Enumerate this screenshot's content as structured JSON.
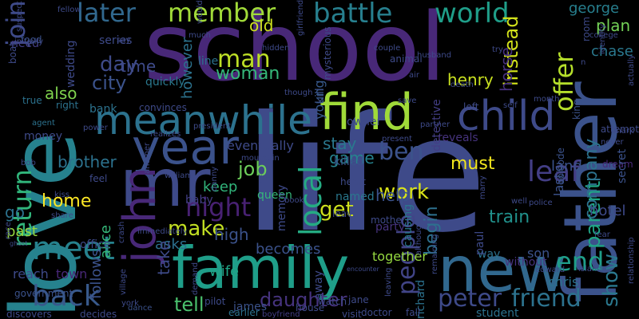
{
  "words": [
    {
      "text": "school",
      "color": "#482878"
    },
    {
      "text": "life",
      "color": "#3e4a89"
    },
    {
      "text": "love",
      "color": "#26828e"
    },
    {
      "text": "father",
      "color": "#3b528b"
    },
    {
      "text": "family",
      "color": "#1f9e89"
    },
    {
      "text": "new",
      "color": "#31688e"
    },
    {
      "text": "find",
      "color": "#a0da39"
    },
    {
      "text": "child",
      "color": "#3e4a89"
    },
    {
      "text": "year",
      "color": "#3b528b"
    },
    {
      "text": "mr",
      "color": "#3e4a89"
    },
    {
      "text": "meanwhile",
      "color": "#2c728e"
    },
    {
      "text": "john",
      "color": "#482878"
    },
    {
      "text": "meet",
      "color": "#26828e"
    },
    {
      "text": "battle",
      "color": "#277f8e"
    },
    {
      "text": "world",
      "color": "#1f9e89"
    },
    {
      "text": "member",
      "color": "#a0da39"
    },
    {
      "text": "later",
      "color": "#31688e"
    },
    {
      "text": "join",
      "color": "#3e4a89"
    },
    {
      "text": "return",
      "color": "#31b57b"
    },
    {
      "text": "back",
      "color": "#38598c"
    },
    {
      "text": "peter",
      "color": "#3e4a89"
    },
    {
      "text": "friend",
      "color": "#2c728e"
    },
    {
      "text": "end",
      "color": "#1f9e89"
    },
    {
      "text": "offer",
      "color": "#b5de2b"
    },
    {
      "text": "ben",
      "color": "#3b528b"
    },
    {
      "text": "local",
      "color": "#25ab82"
    },
    {
      "text": "leaf",
      "color": "#433e85"
    },
    {
      "text": "night",
      "color": "#482173"
    },
    {
      "text": "work",
      "color": "#d8e219"
    },
    {
      "text": "get",
      "color": "#cde11d"
    },
    {
      "text": "job",
      "color": "#6ccd5a"
    },
    {
      "text": "make",
      "color": "#c2df23"
    },
    {
      "text": "tell",
      "color": "#4ac16d"
    },
    {
      "text": "daughter",
      "color": "#46337e"
    },
    {
      "text": "people",
      "color": "#414487"
    },
    {
      "text": "show",
      "color": "#2a788e"
    },
    {
      "text": "parent",
      "color": "#20a486"
    },
    {
      "text": "company",
      "color": "#2c728e"
    },
    {
      "text": "home",
      "color": "#fde725"
    },
    {
      "text": "city",
      "color": "#3b528b"
    },
    {
      "text": "man",
      "color": "#bddf26"
    },
    {
      "text": "woman",
      "color": "#35b779"
    },
    {
      "text": "day",
      "color": "#3e4a89"
    },
    {
      "text": "time",
      "color": "#3e4a89"
    },
    {
      "text": "also",
      "color": "#7fd34e"
    },
    {
      "text": "brother",
      "color": "#2c728e"
    },
    {
      "text": "go",
      "color": "#2c728e"
    },
    {
      "text": "past",
      "color": "#95d840"
    },
    {
      "text": "hotel",
      "color": "#3e4a89"
    },
    {
      "text": "train",
      "color": "#21918c"
    },
    {
      "text": "instead",
      "color": "#d2e21b"
    },
    {
      "text": "plan",
      "color": "#73d056"
    },
    {
      "text": "george",
      "color": "#277f8e"
    },
    {
      "text": "chase",
      "color": "#2a788e"
    },
    {
      "text": "horse",
      "color": "#46307e"
    },
    {
      "text": "henry",
      "color": "#c8e020"
    },
    {
      "text": "land",
      "color": "#3b528b"
    },
    {
      "text": "must",
      "color": "#f1e51d"
    },
    {
      "text": "begin",
      "color": "#2d708e"
    },
    {
      "text": "help",
      "color": "#3b528b"
    },
    {
      "text": "stay",
      "color": "#2a788e"
    },
    {
      "text": "game",
      "color": "#26828e"
    },
    {
      "text": "keep",
      "color": "#31b57b"
    },
    {
      "text": "high",
      "color": "#3b528b"
    },
    {
      "text": "asks",
      "color": "#2d708e"
    },
    {
      "text": "take",
      "color": "#3e4a89"
    },
    {
      "text": "wife",
      "color": "#20a486"
    },
    {
      "text": "becomes",
      "color": "#3b528b"
    },
    {
      "text": "alice",
      "color": "#35b779"
    },
    {
      "text": "follows",
      "color": "#3b528b"
    },
    {
      "text": "town",
      "color": "#482878"
    },
    {
      "text": "reach",
      "color": "#3e4a89"
    },
    {
      "text": "office",
      "color": "#3e4a89"
    },
    {
      "text": "old",
      "color": "#cde11d"
    },
    {
      "text": "however",
      "color": "#2c728e"
    },
    {
      "text": "young",
      "color": "#38598c"
    },
    {
      "text": "eventually",
      "color": "#3e4a89"
    },
    {
      "text": "dream",
      "color": "#482878"
    },
    {
      "text": "last",
      "color": "#3b528b"
    },
    {
      "text": "secret",
      "color": "#3b528b"
    },
    {
      "text": "son",
      "color": "#3b528b"
    },
    {
      "text": "chris",
      "color": "#2c728e"
    },
    {
      "text": "way",
      "color": "#2c728e"
    },
    {
      "text": "together",
      "color": "#95d840"
    },
    {
      "text": "without",
      "color": "#46337e"
    },
    {
      "text": "party",
      "color": "#46337e"
    },
    {
      "text": "causing",
      "color": "#2a788e"
    },
    {
      "text": "detective",
      "color": "#433e85"
    },
    {
      "text": "reveals",
      "color": "#46337e"
    },
    {
      "text": "killed",
      "color": "#3b528b"
    },
    {
      "text": "named",
      "color": "#2a788e"
    },
    {
      "text": "queen",
      "color": "#35b779"
    },
    {
      "text": "james",
      "color": "#3b528b"
    },
    {
      "text": "baby",
      "color": "#433e85"
    },
    {
      "text": "richard",
      "color": "#2c728e"
    },
    {
      "text": "paul",
      "color": "#3e4a89"
    },
    {
      "text": "king",
      "color": "#3b528b"
    },
    {
      "text": "episode",
      "color": "#3b528b"
    },
    {
      "text": "kill",
      "color": "#3b528b"
    },
    {
      "text": "away",
      "color": "#3e4a89"
    },
    {
      "text": "student",
      "color": "#2c728e"
    },
    {
      "text": "memory",
      "color": "#3e4a89"
    },
    {
      "text": "line",
      "color": "#2c728e"
    },
    {
      "text": "quickly",
      "color": "#2a788e"
    },
    {
      "text": "bank",
      "color": "#2c728e"
    },
    {
      "text": "money",
      "color": "#3e4a89"
    },
    {
      "text": "convinces",
      "color": "#3e4a89"
    },
    {
      "text": "series",
      "color": "#3e4a89"
    },
    {
      "text": "need",
      "color": "#433e85"
    },
    {
      "text": "boat",
      "color": "#3e4a89"
    },
    {
      "text": "food",
      "color": "#3b528b"
    },
    {
      "text": "wedding",
      "color": "#3e4a89"
    },
    {
      "text": "true",
      "color": "#2c728e"
    },
    {
      "text": "agent",
      "color": "#2c728e"
    },
    {
      "text": "right",
      "color": "#2c728e"
    },
    {
      "text": "government",
      "color": "#3b528b"
    },
    {
      "text": "discovers",
      "color": "#3e4a89"
    },
    {
      "text": "decides",
      "color": "#3e4a89"
    },
    {
      "text": "dance",
      "color": "#3b528b"
    },
    {
      "text": "earlier",
      "color": "#2c728e"
    },
    {
      "text": "pilot",
      "color": "#3e4a89"
    },
    {
      "text": "boyfriend",
      "color": "#433e85"
    },
    {
      "text": "doctor",
      "color": "#3e4a89"
    },
    {
      "text": "fall",
      "color": "#3e4a89"
    },
    {
      "text": "jane",
      "color": "#3e4a89"
    },
    {
      "text": "visit",
      "color": "#3e4a89"
    },
    {
      "text": "watch",
      "color": "#3e4a89"
    },
    {
      "text": "house",
      "color": "#3e4a89"
    },
    {
      "text": "mother",
      "color": "#3e4a89"
    },
    {
      "text": "leave",
      "color": "#3e4a89"
    },
    {
      "text": "heart",
      "color": "#3e4a89"
    },
    {
      "text": "girlfriend",
      "color": "#3e4a89"
    },
    {
      "text": "husband",
      "color": "#3e4a89"
    },
    {
      "text": "couple",
      "color": "#3e4a89"
    },
    {
      "text": "mysterious",
      "color": "#3e4a89"
    },
    {
      "text": "room",
      "color": "#3e4a89"
    },
    {
      "text": "identity",
      "color": "#3e4a89"
    },
    {
      "text": "college",
      "color": "#3e4a89"
    },
    {
      "text": "attempt",
      "color": "#3e4a89"
    },
    {
      "text": "relationship",
      "color": "#3e4a89"
    },
    {
      "text": "edward",
      "color": "#3e4a89"
    },
    {
      "text": "police",
      "color": "#3e4a89"
    },
    {
      "text": "mark",
      "color": "#3e4a89"
    },
    {
      "text": "never",
      "color": "#3e4a89"
    },
    {
      "text": "marry",
      "color": "#3e4a89"
    },
    {
      "text": "william",
      "color": "#3e4a89"
    },
    {
      "text": "president",
      "color": "#3e4a89"
    },
    {
      "text": "realizes",
      "color": "#3e4a89"
    },
    {
      "text": "bob",
      "color": "#3e4a89"
    },
    {
      "text": "power",
      "color": "#3e4a89"
    },
    {
      "text": "kiss",
      "color": "#3e4a89"
    },
    {
      "text": "share",
      "color": "#3e4a89"
    },
    {
      "text": "race",
      "color": "#3e4a89"
    },
    {
      "text": "ghost",
      "color": "#3e4a89"
    },
    {
      "text": "immediately",
      "color": "#3e4a89"
    },
    {
      "text": "crash",
      "color": "#3e4a89"
    },
    {
      "text": "village",
      "color": "#3e4a89"
    },
    {
      "text": "demand",
      "color": "#3e4a89"
    },
    {
      "text": "encounter",
      "color": "#3e4a89"
    },
    {
      "text": "leaving",
      "color": "#3e4a89"
    },
    {
      "text": "remaining",
      "color": "#3e4a89"
    },
    {
      "text": "although",
      "color": "#3e4a89"
    },
    {
      "text": "present",
      "color": "#3e4a89"
    },
    {
      "text": "partner",
      "color": "#3e4a89"
    },
    {
      "text": "left",
      "color": "#3e4a89"
    },
    {
      "text": "self",
      "color": "#3e4a89"
    },
    {
      "text": "though",
      "color": "#3e4a89"
    },
    {
      "text": "save",
      "color": "#3e4a89"
    },
    {
      "text": "death",
      "color": "#3e4a89"
    },
    {
      "text": "air",
      "color": "#3e4a89"
    },
    {
      "text": "animal",
      "color": "#3e4a89"
    },
    {
      "text": "hidden",
      "color": "#3e4a89"
    },
    {
      "text": "would",
      "color": "#3e4a89"
    },
    {
      "text": "say",
      "color": "#3e4a89"
    },
    {
      "text": "fellow",
      "color": "#3e4a89"
    },
    {
      "text": "initially",
      "color": "#3e4a89"
    },
    {
      "text": "suspect",
      "color": "#3e4a89"
    },
    {
      "text": "try",
      "color": "#3e4a89"
    },
    {
      "text": "jim",
      "color": "#3e4a89"
    },
    {
      "text": "mountain",
      "color": "#3e4a89"
    },
    {
      "text": "danny",
      "color": "#3e4a89"
    },
    {
      "text": "much",
      "color": "#3e4a89"
    },
    {
      "text": "another",
      "color": "#3e4a89"
    },
    {
      "text": "actually",
      "color": "#3e4a89"
    },
    {
      "text": "fear",
      "color": "#3e4a89"
    },
    {
      "text": "well",
      "color": "#3e4a89"
    },
    {
      "text": "month",
      "color": "#3e4a89"
    },
    {
      "text": "york",
      "color": "#3e4a89"
    },
    {
      "text": "feel",
      "color": "#3e4a89"
    },
    {
      "text": "owner",
      "color": "#3e4a89"
    },
    {
      "text": "island",
      "color": "#3e4a89"
    },
    {
      "text": "book",
      "color": "#3e4a89"
    },
    {
      "text": "n",
      "color": "#3e4a89"
    }
  ]
}
